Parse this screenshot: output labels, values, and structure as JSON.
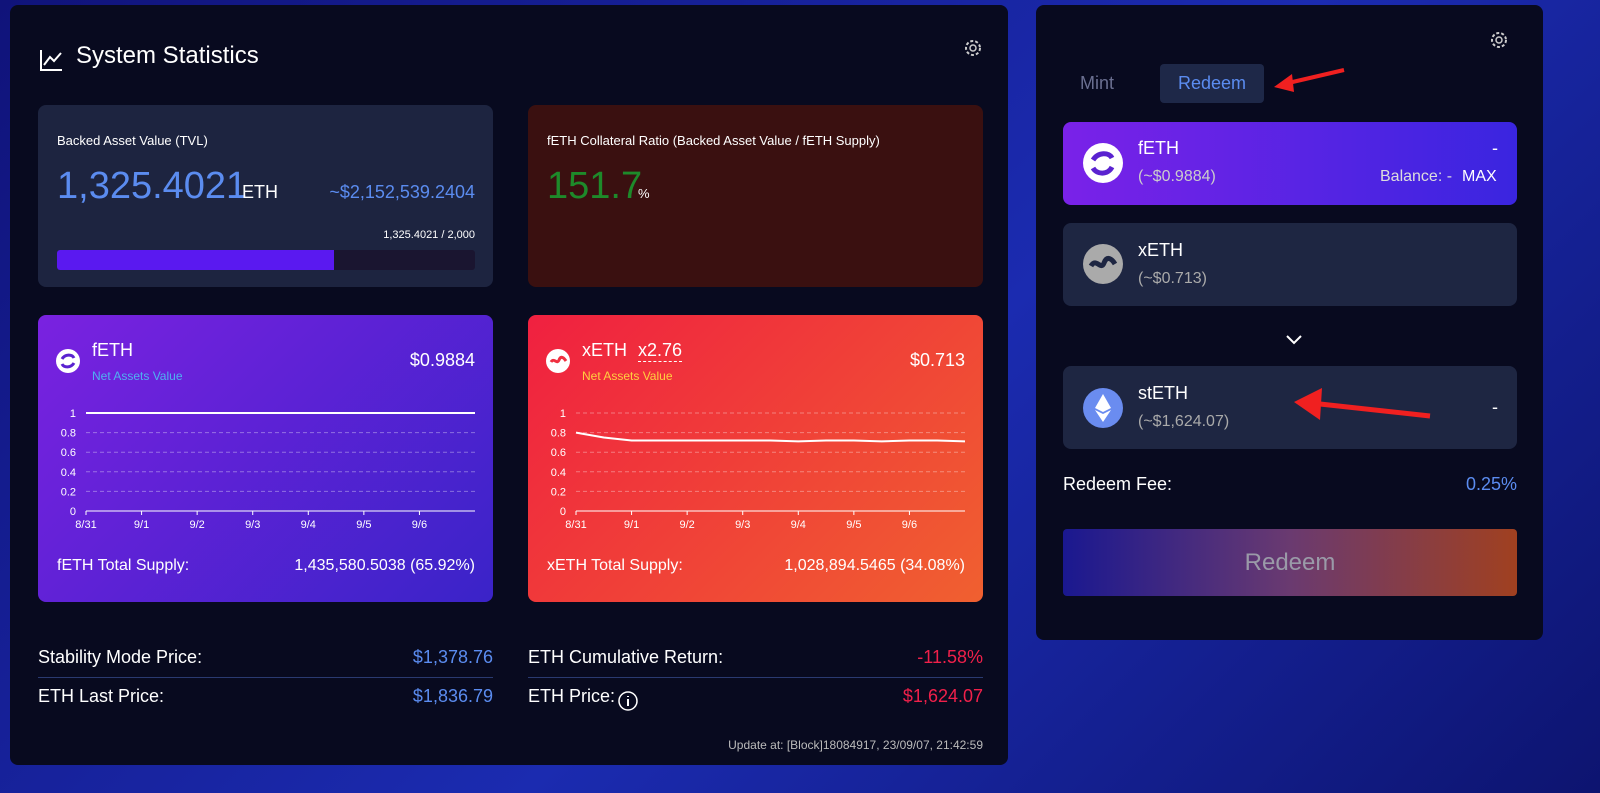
{
  "stats": {
    "title": "System Statistics",
    "tvl": {
      "label": "Backed Asset Value (TVL)",
      "value": "1,325.4021",
      "unit": "ETH",
      "usd": "~$2,152,539.2404",
      "progress_label": "1,325.4021 / 2,000",
      "progress": {
        "value": 1325.4021,
        "max": 2000
      }
    },
    "ratio": {
      "label": "fETH Collateral Ratio (Backed Asset Value / fETH Supply)",
      "value": "151.7",
      "unit": "%"
    },
    "feth": {
      "name": "fETH",
      "sub": "Net Assets Value",
      "price": "$0.9884",
      "supply_label": "fETH Total Supply:",
      "supply": "1,435,580.5038 (65.92%)",
      "chart": {
        "type": "line",
        "categories": [
          "8/31",
          null,
          "9/1",
          null,
          "9/2",
          null,
          "9/3",
          null,
          "9/4",
          null,
          "9/5",
          null,
          "9/6",
          null,
          null
        ],
        "values": [
          1,
          1,
          1,
          1,
          1,
          1,
          1,
          1,
          1,
          1,
          1,
          1,
          1,
          1,
          1
        ],
        "color": "#ffffff",
        "ylim": [
          0,
          1
        ],
        "yticks": [
          0,
          0.2,
          0.4,
          0.6,
          0.8,
          1
        ],
        "grid": true
      }
    },
    "xeth": {
      "name": "xETH",
      "leverage": "x2.76",
      "sub": "Net Assets Value",
      "price": "$0.713",
      "supply_label": "xETH Total Supply:",
      "supply": "1,028,894.5465 (34.08%)",
      "chart": {
        "type": "line",
        "categories": [
          "8/31",
          null,
          "9/1",
          null,
          "9/2",
          null,
          "9/3",
          null,
          "9/4",
          null,
          "9/5",
          null,
          "9/6",
          null,
          null
        ],
        "values": [
          0.8,
          0.75,
          0.72,
          0.72,
          0.72,
          0.72,
          0.72,
          0.72,
          0.71,
          0.72,
          0.72,
          0.71,
          0.72,
          0.72,
          0.71
        ],
        "color": "#ffffff",
        "ylim": [
          0,
          1
        ],
        "yticks": [
          0,
          0.2,
          0.4,
          0.6,
          0.8,
          1
        ],
        "grid": true
      }
    },
    "metrics": [
      {
        "label": "Stability Mode Price:",
        "value": "$1,378.76"
      },
      {
        "label": "ETH Last Price:",
        "value": "$1,836.79"
      },
      {
        "label": "ETH Cumulative Return:",
        "value": "-11.58%"
      },
      {
        "label": "ETH Price:",
        "value": "$1,624.07"
      }
    ],
    "update": "Update at: [Block]18084917, 23/09/07, 21:42:59"
  },
  "panel": {
    "tabs": [
      "Mint",
      "Redeem"
    ],
    "from": [
      {
        "name": "fETH",
        "price": "(~$0.9884)",
        "amount": "-",
        "balance": "Balance: -",
        "max": "MAX"
      },
      {
        "name": "xETH",
        "price": "(~$0.713)"
      }
    ],
    "to": {
      "name": "stETH",
      "price": "(~$1,624.07)",
      "amount": "-"
    },
    "fee_label": "Redeem Fee:",
    "fee": "0.25%",
    "button": "Redeem"
  }
}
